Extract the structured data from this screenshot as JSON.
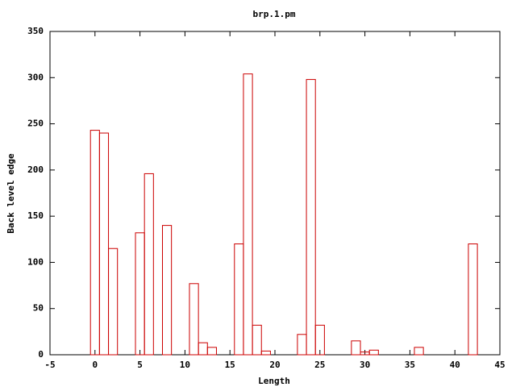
{
  "chart_data": {
    "type": "bar",
    "title": "brp.1.pm",
    "x_label": "Length",
    "y_label": "Back level edge",
    "x": [
      0,
      1,
      2,
      5,
      6,
      8,
      11,
      12,
      13,
      16,
      17,
      18,
      19,
      23,
      24,
      25,
      29,
      30,
      31,
      36,
      42
    ],
    "values": [
      243,
      240,
      115,
      132,
      196,
      140,
      77,
      13,
      8,
      120,
      304,
      32,
      4,
      22,
      298,
      32,
      15,
      3,
      5,
      8,
      120
    ],
    "color": "#cc0000",
    "xlim": [
      -5,
      45
    ],
    "xticks": [
      -5,
      0,
      5,
      10,
      15,
      20,
      25,
      30,
      35,
      40,
      45
    ],
    "ylim": [
      0,
      350
    ],
    "yticks": [
      0,
      50,
      100,
      150,
      200,
      250,
      300,
      350
    ]
  }
}
